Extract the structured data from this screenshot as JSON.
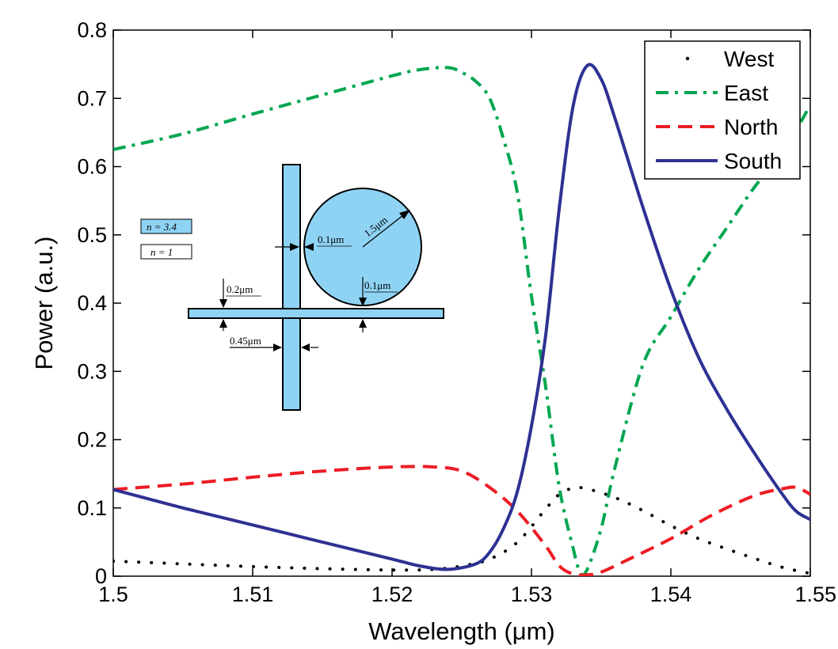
{
  "chart_data": {
    "type": "line",
    "title": "",
    "xlabel": "Wavelength (μm)",
    "ylabel": "Power (a.u.)",
    "xlim": [
      1.5,
      1.55
    ],
    "ylim": [
      0,
      0.8
    ],
    "xticks": [
      1.5,
      1.51,
      1.52,
      1.53,
      1.54,
      1.55
    ],
    "xtick_labels": [
      "1.5",
      "1.51",
      "1.52",
      "1.53",
      "1.54",
      "1.55"
    ],
    "yticks": [
      0,
      0.1,
      0.2,
      0.3,
      0.4,
      0.5,
      0.6,
      0.7,
      0.8
    ],
    "ytick_labels": [
      "0",
      "0.1",
      "0.2",
      "0.3",
      "0.4",
      "0.5",
      "0.6",
      "0.7",
      "0.8"
    ],
    "grid": false,
    "legend_position": "top-right",
    "series": [
      {
        "name": "West",
        "style": "dotted",
        "color": "#000000",
        "points": [
          [
            1.5,
            0.022
          ],
          [
            1.505,
            0.018
          ],
          [
            1.51,
            0.014
          ],
          [
            1.515,
            0.011
          ],
          [
            1.52,
            0.009
          ],
          [
            1.523,
            0.01
          ],
          [
            1.525,
            0.015
          ],
          [
            1.527,
            0.025
          ],
          [
            1.529,
            0.05
          ],
          [
            1.531,
            0.098
          ],
          [
            1.532,
            0.12
          ],
          [
            1.533,
            0.129
          ],
          [
            1.534,
            0.128
          ],
          [
            1.536,
            0.115
          ],
          [
            1.538,
            0.096
          ],
          [
            1.54,
            0.074
          ],
          [
            1.542,
            0.055
          ],
          [
            1.544,
            0.04
          ],
          [
            1.546,
            0.026
          ],
          [
            1.548,
            0.013
          ],
          [
            1.55,
            0.004
          ]
        ]
      },
      {
        "name": "East",
        "style": "dashdot",
        "color": "#00a651",
        "points": [
          [
            1.5,
            0.625
          ],
          [
            1.505,
            0.648
          ],
          [
            1.51,
            0.677
          ],
          [
            1.515,
            0.705
          ],
          [
            1.52,
            0.733
          ],
          [
            1.522,
            0.742
          ],
          [
            1.524,
            0.745
          ],
          [
            1.525,
            0.738
          ],
          [
            1.526,
            0.725
          ],
          [
            1.527,
            0.7
          ],
          [
            1.528,
            0.64
          ],
          [
            1.529,
            0.56
          ],
          [
            1.53,
            0.41
          ],
          [
            1.531,
            0.28
          ],
          [
            1.532,
            0.13
          ],
          [
            1.533,
            0.04
          ],
          [
            1.5335,
            0.005
          ],
          [
            1.534,
            0.01
          ],
          [
            1.535,
            0.07
          ],
          [
            1.536,
            0.16
          ],
          [
            1.538,
            0.31
          ],
          [
            1.54,
            0.38
          ],
          [
            1.542,
            0.45
          ],
          [
            1.544,
            0.51
          ],
          [
            1.546,
            0.57
          ],
          [
            1.548,
            0.62
          ],
          [
            1.55,
            0.69
          ]
        ]
      },
      {
        "name": "North",
        "style": "dashed",
        "color": "#ed1c24",
        "points": [
          [
            1.5,
            0.127
          ],
          [
            1.505,
            0.135
          ],
          [
            1.51,
            0.145
          ],
          [
            1.515,
            0.154
          ],
          [
            1.52,
            0.16
          ],
          [
            1.523,
            0.16
          ],
          [
            1.525,
            0.154
          ],
          [
            1.527,
            0.13
          ],
          [
            1.529,
            0.095
          ],
          [
            1.531,
            0.045
          ],
          [
            1.532,
            0.015
          ],
          [
            1.533,
            0.003
          ],
          [
            1.534,
            0.002
          ],
          [
            1.535,
            0.006
          ],
          [
            1.537,
            0.025
          ],
          [
            1.54,
            0.055
          ],
          [
            1.543,
            0.09
          ],
          [
            1.546,
            0.118
          ],
          [
            1.548,
            0.128
          ],
          [
            1.549,
            0.13
          ],
          [
            1.55,
            0.12
          ]
        ]
      },
      {
        "name": "South",
        "style": "solid",
        "color": "#2e3192",
        "points": [
          [
            1.5,
            0.127
          ],
          [
            1.505,
            0.1
          ],
          [
            1.51,
            0.075
          ],
          [
            1.515,
            0.05
          ],
          [
            1.52,
            0.025
          ],
          [
            1.522,
            0.015
          ],
          [
            1.524,
            0.01
          ],
          [
            1.526,
            0.018
          ],
          [
            1.527,
            0.035
          ],
          [
            1.528,
            0.07
          ],
          [
            1.529,
            0.125
          ],
          [
            1.53,
            0.22
          ],
          [
            1.531,
            0.35
          ],
          [
            1.532,
            0.54
          ],
          [
            1.533,
            0.69
          ],
          [
            1.534,
            0.748
          ],
          [
            1.535,
            0.728
          ],
          [
            1.536,
            0.67
          ],
          [
            1.538,
            0.54
          ],
          [
            1.54,
            0.42
          ],
          [
            1.542,
            0.32
          ],
          [
            1.544,
            0.245
          ],
          [
            1.546,
            0.18
          ],
          [
            1.548,
            0.12
          ],
          [
            1.549,
            0.095
          ],
          [
            1.55,
            0.083
          ]
        ]
      }
    ],
    "inset": {
      "legend": [
        "n = 3.4",
        "n = 1"
      ],
      "fill_color": "#8fd3f4",
      "annotations": [
        "1.5μm",
        "0.1μm",
        "0.1μm",
        "0.2μm",
        "0.45μm"
      ]
    }
  }
}
